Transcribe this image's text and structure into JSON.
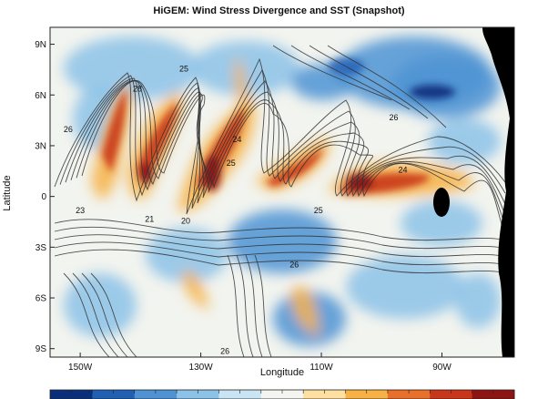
{
  "title": "HiGEM: Wind Stress Divergence and SST (Snapshot)",
  "x_axis_title": "Longitude",
  "y_axis_title": "Latitude",
  "chart_data": {
    "type": "heatmap",
    "title": "HiGEM: Wind Stress Divergence and SST (Snapshot)",
    "xlabel": "Longitude",
    "ylabel": "Latitude",
    "x_ticks": [
      {
        "value": -150,
        "label": "150W"
      },
      {
        "value": -130,
        "label": "130W"
      },
      {
        "value": -110,
        "label": "110W"
      },
      {
        "value": -90,
        "label": "90W"
      }
    ],
    "y_ticks": [
      {
        "value": 9,
        "label": "9N"
      },
      {
        "value": 6,
        "label": "6N"
      },
      {
        "value": 3,
        "label": "3N"
      },
      {
        "value": 0,
        "label": "0"
      },
      {
        "value": -3,
        "label": "3S"
      },
      {
        "value": -6,
        "label": "6S"
      },
      {
        "value": -9,
        "label": "9S"
      }
    ],
    "xlim": [
      -155,
      -78
    ],
    "ylim": [
      -9.5,
      10
    ],
    "colormap": [
      "#0a2f7a",
      "#1f5fb4",
      "#4d93d4",
      "#8cc2e8",
      "#c9e5f4",
      "#f4f4f0",
      "#fde0a0",
      "#f7b144",
      "#e8702a",
      "#c9361a",
      "#8e1414"
    ],
    "land_color": "#000000",
    "contour_color": "#333333",
    "contour_labels": [
      {
        "text": "28",
        "lon": -140.5,
        "lat": 6.2
      },
      {
        "text": "26",
        "lon": -152.0,
        "lat": 3.8
      },
      {
        "text": "25",
        "lon": -132.8,
        "lat": 7.4
      },
      {
        "text": "24",
        "lon": -124.0,
        "lat": 3.2
      },
      {
        "text": "25",
        "lon": -125.0,
        "lat": 1.8
      },
      {
        "text": "26",
        "lon": -98.0,
        "lat": 4.5
      },
      {
        "text": "24",
        "lon": -96.5,
        "lat": 1.4
      },
      {
        "text": "23",
        "lon": -150.0,
        "lat": -1.0
      },
      {
        "text": "21",
        "lon": -138.5,
        "lat": -1.5
      },
      {
        "text": "20",
        "lon": -132.5,
        "lat": -1.6
      },
      {
        "text": "25",
        "lon": -110.5,
        "lat": -1.0
      },
      {
        "text": "26",
        "lon": -114.5,
        "lat": -4.2
      },
      {
        "text": "26",
        "lon": -126.0,
        "lat": -9.3
      }
    ]
  }
}
